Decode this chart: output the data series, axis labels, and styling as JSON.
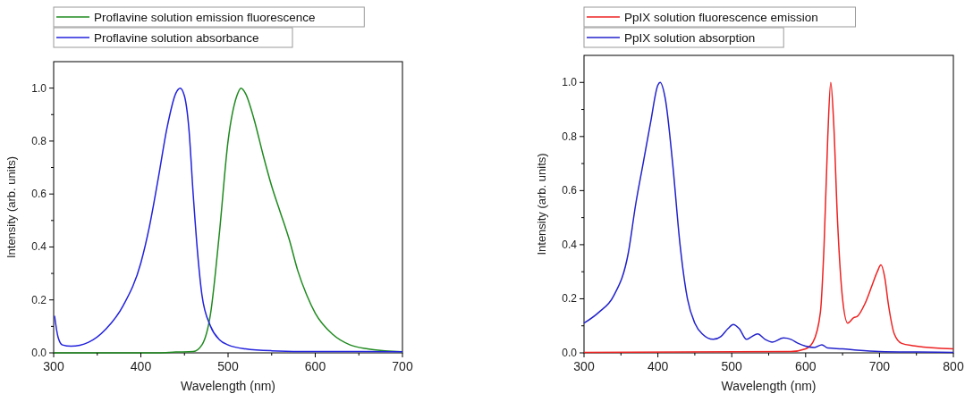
{
  "chart_data": [
    {
      "type": "line",
      "xlabel": "Wavelength (nm)",
      "ylabel": "Intensity (arb. units)",
      "xlim": [
        300,
        700
      ],
      "ylim": [
        0,
        1.1
      ],
      "xticks": [
        300,
        {
          "value": 350,
          "label": null
        },
        400,
        {
          "value": 450,
          "label": null
        },
        500,
        {
          "value": 550,
          "label": null
        },
        600,
        {
          "value": 650,
          "label": null
        },
        700
      ],
      "yticks": [
        {
          "value": 0,
          "label": "0.0"
        },
        {
          "value": 0.1,
          "label": null
        },
        {
          "value": 0.2,
          "label": "0.2"
        },
        {
          "value": 0.3,
          "label": null
        },
        {
          "value": 0.4,
          "label": "0.4"
        },
        {
          "value": 0.5,
          "label": null
        },
        {
          "value": 0.6,
          "label": "0.6"
        },
        {
          "value": 0.7,
          "label": null
        },
        {
          "value": 0.8,
          "label": "0.8"
        },
        {
          "value": 0.9,
          "label": null
        },
        {
          "value": 1,
          "label": "1.0"
        }
      ],
      "legend": "top left",
      "grid": false,
      "line_style": "solid",
      "marker": "none",
      "series": [
        {
          "name": "Proflavine solution emission fluorescence",
          "color": "#1f8a1f",
          "x": [
            300,
            420,
            440,
            460,
            470,
            480,
            490,
            500,
            510,
            515,
            520,
            530,
            540,
            550,
            560,
            570,
            580,
            590,
            600,
            620,
            640,
            660,
            680,
            700
          ],
          "values": [
            0,
            0,
            0.003,
            0.005,
            0.03,
            0.15,
            0.45,
            0.8,
            0.97,
            1.0,
            0.98,
            0.88,
            0.75,
            0.63,
            0.53,
            0.43,
            0.31,
            0.22,
            0.15,
            0.07,
            0.03,
            0.015,
            0.008,
            0.004
          ]
        },
        {
          "name": "Proflavine solution absorbance",
          "color": "#2222dd",
          "x": [
            301,
            305,
            310,
            320,
            340,
            360,
            380,
            400,
            410,
            420,
            430,
            440,
            445,
            450,
            455,
            460,
            465,
            470,
            480,
            490,
            500,
            520,
            550,
            600,
            650,
            700
          ],
          "values": [
            0.14,
            0.06,
            0.03,
            0.025,
            0.04,
            0.09,
            0.18,
            0.34,
            0.48,
            0.66,
            0.85,
            0.98,
            1.0,
            0.97,
            0.85,
            0.6,
            0.38,
            0.22,
            0.1,
            0.05,
            0.03,
            0.015,
            0.008,
            0.005,
            0.005,
            0.004
          ]
        }
      ]
    },
    {
      "type": "line",
      "xlabel": "Wavelength (nm)",
      "ylabel": "Intensity (arb. units)",
      "xlim": [
        300,
        800
      ],
      "ylim": [
        0,
        1.1
      ],
      "xticks": [
        300,
        {
          "value": 350,
          "label": null
        },
        400,
        {
          "value": 450,
          "label": null
        },
        500,
        {
          "value": 550,
          "label": null
        },
        600,
        {
          "value": 650,
          "label": null
        },
        700,
        {
          "value": 750,
          "label": null
        },
        800
      ],
      "yticks": [
        {
          "value": 0,
          "label": "0.0"
        },
        {
          "value": 0.1,
          "label": null
        },
        {
          "value": 0.2,
          "label": "0.2"
        },
        {
          "value": 0.3,
          "label": null
        },
        {
          "value": 0.4,
          "label": "0.4"
        },
        {
          "value": 0.5,
          "label": null
        },
        {
          "value": 0.6,
          "label": "0.6"
        },
        {
          "value": 0.7,
          "label": null
        },
        {
          "value": 0.8,
          "label": "0.8"
        },
        {
          "value": 0.9,
          "label": null
        },
        {
          "value": 1,
          "label": "1.0"
        }
      ],
      "legend": "top left",
      "grid": false,
      "line_style": "solid",
      "marker": "none",
      "series": [
        {
          "name": "PpIX solution fluorescence emission",
          "color": "#ee2222",
          "x": [
            300,
            580,
            600,
            610,
            620,
            625,
            630,
            634,
            638,
            643,
            650,
            657,
            665,
            670,
            680,
            690,
            697,
            702,
            707,
            712,
            720,
            730,
            750,
            800
          ],
          "values": [
            0.002,
            0.005,
            0.015,
            0.04,
            0.15,
            0.4,
            0.8,
            1.0,
            0.85,
            0.5,
            0.2,
            0.11,
            0.13,
            0.135,
            0.18,
            0.25,
            0.3,
            0.325,
            0.28,
            0.18,
            0.07,
            0.035,
            0.025,
            0.015
          ]
        },
        {
          "name": "PpIX solution absorption",
          "color": "#2222cc",
          "x": [
            300,
            320,
            340,
            360,
            370,
            380,
            390,
            400,
            403,
            410,
            420,
            430,
            440,
            450,
            460,
            475,
            485,
            495,
            502,
            510,
            520,
            527,
            535,
            545,
            555,
            570,
            580,
            590,
            600,
            612,
            622,
            630,
            650,
            670,
            700,
            750,
            800
          ],
          "values": [
            0.11,
            0.15,
            0.21,
            0.37,
            0.55,
            0.7,
            0.85,
            0.99,
            1.0,
            0.94,
            0.7,
            0.4,
            0.2,
            0.11,
            0.07,
            0.05,
            0.06,
            0.09,
            0.105,
            0.09,
            0.05,
            0.06,
            0.07,
            0.05,
            0.04,
            0.055,
            0.05,
            0.035,
            0.025,
            0.02,
            0.03,
            0.018,
            0.015,
            0.01,
            0.005,
            0.003,
            0.002
          ]
        }
      ]
    }
  ]
}
